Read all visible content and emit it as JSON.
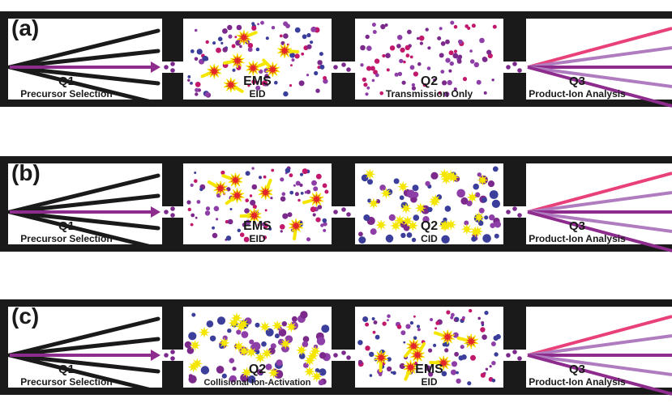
{
  "colors": {
    "frame": "#1a1a1a",
    "ion_purple": "#7b2a8c",
    "ion_magenta": "#c2186b",
    "ion_blue": "#3b3e9a",
    "ion_violet": "#8e3fa7",
    "spark_red": "#e3262b",
    "spark_yellow": "#f5e600",
    "beam_pink": "#e8407a",
    "beam_lilac": "#b07cc0",
    "beam_purple": "#8e2c8e"
  },
  "panels": [
    {
      "tag": "(a)",
      "q1": {
        "title": "Q1",
        "subtitle": "Precursor Selection"
      },
      "cell1": {
        "title": "EMS",
        "subtitle": "EID",
        "kind": "eid"
      },
      "cell2": {
        "title": "Q2",
        "subtitle": "Transmission Only",
        "kind": "transmission"
      },
      "q3": {
        "title": "Q3",
        "subtitle": "Product-Ion Analysis"
      }
    },
    {
      "tag": "(b)",
      "q1": {
        "title": "Q1",
        "subtitle": "Precursor Selection"
      },
      "cell1": {
        "title": "EMS",
        "subtitle": "EID",
        "kind": "eid"
      },
      "cell2": {
        "title": "Q2",
        "subtitle": "CID",
        "kind": "cid"
      },
      "q3": {
        "title": "Q3",
        "subtitle": "Product-Ion Analysis"
      }
    },
    {
      "tag": "(c)",
      "q1": {
        "title": "Q1",
        "subtitle": "Precursor Selection"
      },
      "cell1": {
        "title": "Q2",
        "subtitle": "Collisional Ion-Activation",
        "kind": "cid"
      },
      "cell2": {
        "title": "EMS",
        "subtitle": "EID",
        "kind": "eid"
      },
      "q3": {
        "title": "Q3",
        "subtitle": "Product-Ion Analysis"
      }
    }
  ]
}
